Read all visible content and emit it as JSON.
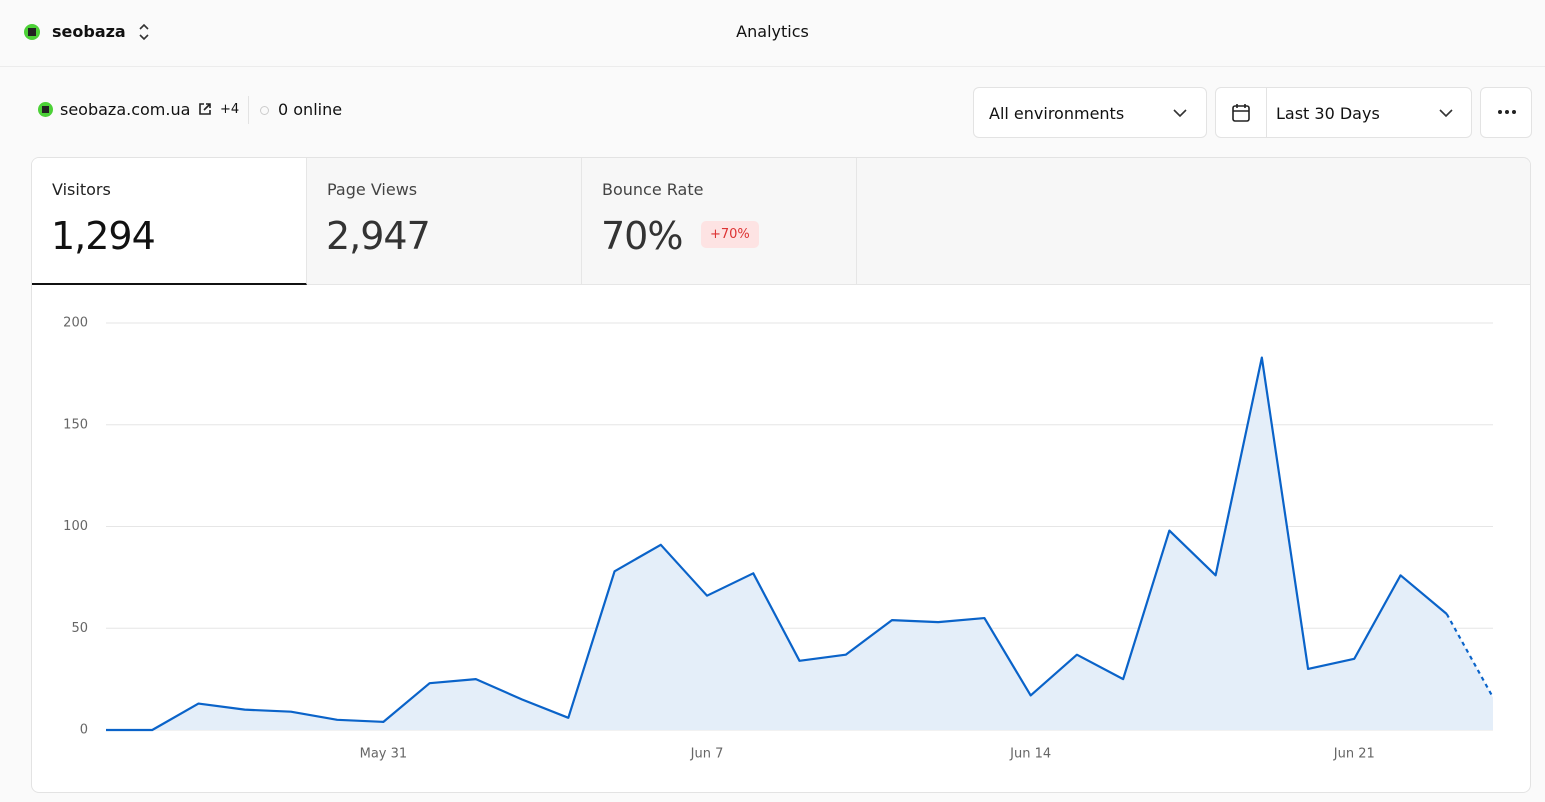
{
  "header": {
    "workspace": "seobaza",
    "title": "Analytics"
  },
  "site": {
    "domain": "seobaza.com.ua",
    "extra": "+4",
    "online": "0 online"
  },
  "controls": {
    "environment": "All environments",
    "range": "Last 30 Days"
  },
  "stats": [
    {
      "label": "Visitors",
      "value": "1,294"
    },
    {
      "label": "Page Views",
      "value": "2,947"
    },
    {
      "label": "Bounce Rate",
      "value": "70%",
      "change": "+70%"
    }
  ],
  "chart_data": {
    "type": "line",
    "fill": true,
    "color": "#0a63c9",
    "fill_color": "#e4eef9",
    "dashed_last_segment": true,
    "grid": true,
    "categories": [
      null,
      null,
      null,
      null,
      null,
      null,
      "May 31",
      null,
      null,
      null,
      null,
      null,
      null,
      "Jun 7",
      null,
      null,
      null,
      null,
      null,
      null,
      "Jun 14",
      null,
      null,
      null,
      null,
      null,
      null,
      "Jun 21",
      null,
      null,
      null
    ],
    "values": [
      0,
      0,
      13,
      10,
      9,
      5,
      4,
      23,
      25,
      15,
      6,
      78,
      91,
      66,
      77,
      34,
      37,
      54,
      53,
      55,
      17,
      37,
      25,
      98,
      76,
      183,
      30,
      35,
      76,
      57,
      16
    ],
    "ylim": [
      0,
      200
    ],
    "yticks": [
      0,
      50,
      100,
      150,
      200
    ]
  }
}
